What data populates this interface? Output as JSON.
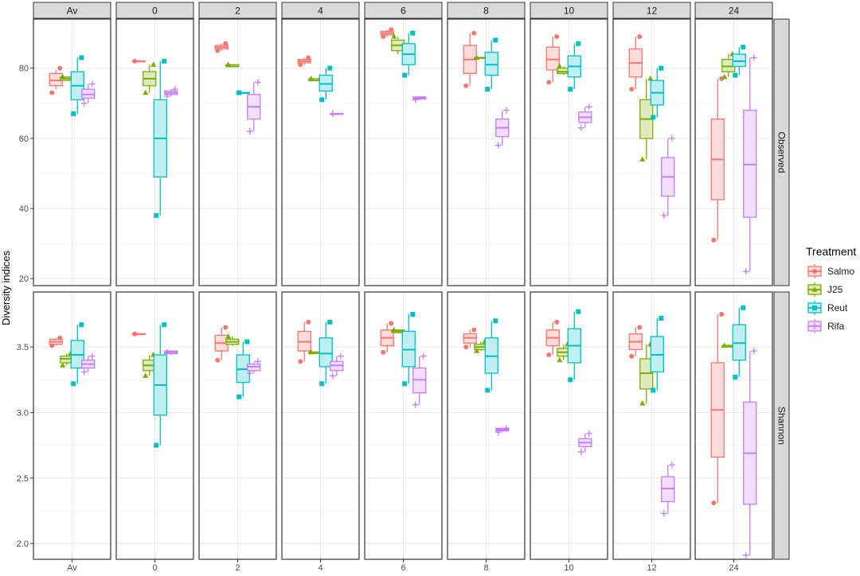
{
  "chart_data": {
    "type": "boxplot",
    "facet_columns": [
      "Av",
      "0",
      "2",
      "4",
      "6",
      "8",
      "10",
      "12",
      "24"
    ],
    "facet_rows": [
      "Observed",
      "Shannon"
    ],
    "ylabel": "Diversity indices",
    "legend": {
      "title": "Treatment",
      "position": "right",
      "entries": [
        "Salmo",
        "J25",
        "Reut",
        "Rifa"
      ]
    },
    "colors": {
      "Salmo": "#f8766d",
      "J25": "#7cae00",
      "Reut": "#00bfc4",
      "Rifa": "#c77cff"
    },
    "shapes": {
      "Salmo": "circle",
      "J25": "triangle",
      "Reut": "square",
      "Rifa": "plus"
    },
    "grid": true,
    "scales": {
      "Observed": {
        "ylim": [
          18,
          94
        ],
        "ticks": [
          20,
          40,
          60,
          80
        ],
        "tick_labels": [
          "20",
          "40",
          "60",
          "80"
        ]
      },
      "Shannon": {
        "ylim": [
          1.88,
          3.92
        ],
        "ticks": [
          2.0,
          2.5,
          3.0,
          3.5
        ],
        "tick_labels": [
          "2.0",
          "2.5",
          "3.0",
          "3.5"
        ]
      }
    },
    "panels": {
      "Observed": {
        "Av": {
          "Salmo": {
            "q1": 75,
            "median": 76.5,
            "q3": 78.5,
            "whisker_low": 74,
            "whisker_high": 79.5,
            "points": [
              73,
              80
            ]
          },
          "J25": {
            "q1": 76.5,
            "median": 77,
            "q3": 77.5,
            "whisker_low": 76.5,
            "whisker_high": 77.5,
            "points": [
              77.5
            ]
          },
          "Reut": {
            "q1": 71,
            "median": 75,
            "q3": 79,
            "whisker_low": 67,
            "whisker_high": 83,
            "points": [
              67,
              83
            ]
          },
          "Rifa": {
            "q1": 71.5,
            "median": 72.5,
            "q3": 74,
            "whisker_low": 70,
            "whisker_high": 75.5,
            "points": [
              70,
              75.5
            ]
          }
        },
        "0": {
          "Salmo": {
            "q1": 82,
            "median": 82,
            "q3": 82,
            "whisker_low": 82,
            "whisker_high": 82,
            "points": [
              82
            ]
          },
          "J25": {
            "q1": 75,
            "median": 77,
            "q3": 79,
            "whisker_low": 73,
            "whisker_high": 81,
            "points": [
              73,
              81
            ]
          },
          "Reut": {
            "q1": 49,
            "median": 60,
            "q3": 71,
            "whisker_low": 38,
            "whisker_high": 82,
            "points": [
              38,
              82
            ]
          },
          "Rifa": {
            "q1": 72.5,
            "median": 73,
            "q3": 73.5,
            "whisker_low": 72,
            "whisker_high": 74,
            "points": [
              72,
              74
            ]
          }
        },
        "2": {
          "Salmo": {
            "q1": 85.5,
            "median": 86,
            "q3": 86.5,
            "whisker_low": 85,
            "whisker_high": 87,
            "points": [
              85,
              87
            ]
          },
          "J25": {
            "q1": 80.5,
            "median": 80.5,
            "q3": 81,
            "whisker_low": 80.5,
            "whisker_high": 81,
            "points": [
              81
            ]
          },
          "Reut": {
            "q1": 73,
            "median": 73,
            "q3": 73,
            "whisker_low": 73,
            "whisker_high": 73,
            "points": [
              73
            ]
          },
          "Rifa": {
            "q1": 65.5,
            "median": 69,
            "q3": 72.5,
            "whisker_low": 62,
            "whisker_high": 76,
            "points": [
              62,
              76
            ]
          }
        },
        "4": {
          "Salmo": {
            "q1": 81.5,
            "median": 82,
            "q3": 82.5,
            "whisker_low": 81,
            "whisker_high": 83,
            "points": [
              81,
              83
            ]
          },
          "J25": {
            "q1": 76.5,
            "median": 76.5,
            "q3": 77,
            "whisker_low": 76.5,
            "whisker_high": 77,
            "points": [
              77
            ]
          },
          "Reut": {
            "q1": 73.5,
            "median": 75.5,
            "q3": 78,
            "whisker_low": 71,
            "whisker_high": 80,
            "points": [
              71,
              80
            ]
          },
          "Rifa": {
            "q1": 67,
            "median": 67,
            "q3": 67,
            "whisker_low": 67,
            "whisker_high": 67,
            "points": [
              67
            ]
          }
        },
        "6": {
          "Salmo": {
            "q1": 89.5,
            "median": 90,
            "q3": 90.5,
            "whisker_low": 89,
            "whisker_high": 91,
            "points": [
              89,
              91
            ]
          },
          "J25": {
            "q1": 85,
            "median": 86.5,
            "q3": 88,
            "whisker_low": 84,
            "whisker_high": 89,
            "points": [
              89
            ]
          },
          "Reut": {
            "q1": 81,
            "median": 84,
            "q3": 87,
            "whisker_low": 78,
            "whisker_high": 90,
            "points": [
              78,
              90
            ]
          },
          "Rifa": {
            "q1": 71.2,
            "median": 71.5,
            "q3": 71.8,
            "whisker_low": 71,
            "whisker_high": 72,
            "points": [
              71
            ]
          }
        },
        "8": {
          "Salmo": {
            "q1": 78.5,
            "median": 82.5,
            "q3": 86.5,
            "whisker_low": 75,
            "whisker_high": 90,
            "points": [
              75,
              90
            ]
          },
          "J25": {
            "q1": 83,
            "median": 83,
            "q3": 83,
            "whisker_low": 83,
            "whisker_high": 83,
            "points": [
              83
            ]
          },
          "Reut": {
            "q1": 78,
            "median": 81,
            "q3": 84.5,
            "whisker_low": 74,
            "whisker_high": 88,
            "points": [
              74,
              88
            ]
          },
          "Rifa": {
            "q1": 60.5,
            "median": 63,
            "q3": 65.5,
            "whisker_low": 58,
            "whisker_high": 68,
            "points": [
              58,
              68
            ]
          }
        },
        "10": {
          "Salmo": {
            "q1": 79.5,
            "median": 82.5,
            "q3": 86,
            "whisker_low": 76,
            "whisker_high": 89,
            "points": [
              76,
              89
            ]
          },
          "J25": {
            "q1": 78.5,
            "median": 79,
            "q3": 80,
            "whisker_low": 78,
            "whisker_high": 80.5,
            "points": [
              80.5
            ]
          },
          "Reut": {
            "q1": 77.5,
            "median": 80.5,
            "q3": 83.5,
            "whisker_low": 74,
            "whisker_high": 87,
            "points": [
              74,
              87
            ]
          },
          "Rifa": {
            "q1": 64.5,
            "median": 66,
            "q3": 67.5,
            "whisker_low": 63,
            "whisker_high": 69,
            "points": [
              63,
              69
            ]
          }
        },
        "12": {
          "Salmo": {
            "q1": 77.5,
            "median": 81.5,
            "q3": 85.5,
            "whisker_low": 74,
            "whisker_high": 89,
            "points": [
              74,
              89
            ]
          },
          "J25": {
            "q1": 60,
            "median": 65.5,
            "q3": 71,
            "whisker_low": 54,
            "whisker_high": 77,
            "points": [
              54,
              77
            ]
          },
          "Reut": {
            "q1": 69.5,
            "median": 73,
            "q3": 76.5,
            "whisker_low": 66,
            "whisker_high": 80,
            "points": [
              66,
              80
            ]
          },
          "Rifa": {
            "q1": 43.5,
            "median": 49,
            "q3": 54.5,
            "whisker_low": 38,
            "whisker_high": 60,
            "points": [
              38,
              60
            ]
          }
        },
        "24": {
          "Salmo": {
            "q1": 42.5,
            "median": 54,
            "q3": 65.5,
            "whisker_low": 31,
            "whisker_high": 77,
            "points": [
              31,
              77
            ]
          },
          "J25": {
            "q1": 79,
            "median": 80.5,
            "q3": 82.5,
            "whisker_low": 77.5,
            "whisker_high": 84,
            "points": [
              77.5,
              84
            ]
          },
          "Reut": {
            "q1": 80.5,
            "median": 82,
            "q3": 84,
            "whisker_low": 78,
            "whisker_high": 86,
            "points": [
              78,
              86
            ]
          },
          "Rifa": {
            "q1": 37.5,
            "median": 52.5,
            "q3": 68,
            "whisker_low": 22,
            "whisker_high": 83,
            "points": [
              22,
              83
            ]
          }
        }
      },
      "Shannon": {
        "Av": {
          "Salmo": {
            "q1": 3.52,
            "median": 3.54,
            "q3": 3.56,
            "whisker_low": 3.51,
            "whisker_high": 3.57,
            "points": [
              3.51,
              3.57
            ]
          },
          "J25": {
            "q1": 3.38,
            "median": 3.41,
            "q3": 3.43,
            "whisker_low": 3.36,
            "whisker_high": 3.45,
            "points": [
              3.36,
              3.45
            ]
          },
          "Reut": {
            "q1": 3.34,
            "median": 3.44,
            "q3": 3.55,
            "whisker_low": 3.22,
            "whisker_high": 3.67,
            "points": [
              3.22,
              3.67
            ]
          },
          "Rifa": {
            "q1": 3.34,
            "median": 3.37,
            "q3": 3.4,
            "whisker_low": 3.31,
            "whisker_high": 3.43,
            "points": [
              3.31,
              3.43
            ]
          }
        },
        "0": {
          "Salmo": {
            "q1": 3.6,
            "median": 3.6,
            "q3": 3.6,
            "whisker_low": 3.6,
            "whisker_high": 3.6,
            "points": [
              3.6
            ]
          },
          "J25": {
            "q1": 3.32,
            "median": 3.36,
            "q3": 3.4,
            "whisker_low": 3.28,
            "whisker_high": 3.44,
            "points": [
              3.28,
              3.44
            ]
          },
          "Reut": {
            "q1": 2.98,
            "median": 3.21,
            "q3": 3.44,
            "whisker_low": 2.75,
            "whisker_high": 3.67,
            "points": [
              2.75,
              3.67
            ]
          },
          "Rifa": {
            "q1": 3.45,
            "median": 3.46,
            "q3": 3.47,
            "whisker_low": 3.44,
            "whisker_high": 3.47,
            "points": [
              3.46
            ]
          }
        },
        "2": {
          "Salmo": {
            "q1": 3.47,
            "median": 3.53,
            "q3": 3.59,
            "whisker_low": 3.4,
            "whisker_high": 3.65,
            "points": [
              3.4,
              3.65
            ]
          },
          "J25": {
            "q1": 3.52,
            "median": 3.54,
            "q3": 3.56,
            "whisker_low": 3.51,
            "whisker_high": 3.58,
            "points": [
              3.58
            ]
          },
          "Reut": {
            "q1": 3.23,
            "median": 3.33,
            "q3": 3.44,
            "whisker_low": 3.12,
            "whisker_high": 3.54,
            "points": [
              3.12,
              3.54
            ]
          },
          "Rifa": {
            "q1": 3.32,
            "median": 3.35,
            "q3": 3.37,
            "whisker_low": 3.3,
            "whisker_high": 3.39,
            "points": [
              3.3,
              3.39
            ]
          }
        },
        "4": {
          "Salmo": {
            "q1": 3.47,
            "median": 3.54,
            "q3": 3.62,
            "whisker_low": 3.39,
            "whisker_high": 3.69,
            "points": [
              3.39,
              3.69
            ]
          },
          "J25": {
            "q1": 3.45,
            "median": 3.46,
            "q3": 3.46,
            "whisker_low": 3.45,
            "whisker_high": 3.46,
            "points": [
              3.46
            ]
          },
          "Reut": {
            "q1": 3.35,
            "median": 3.45,
            "q3": 3.57,
            "whisker_low": 3.22,
            "whisker_high": 3.69,
            "points": [
              3.22,
              3.69
            ]
          },
          "Rifa": {
            "q1": 3.32,
            "median": 3.36,
            "q3": 3.39,
            "whisker_low": 3.28,
            "whisker_high": 3.43,
            "points": [
              3.28,
              3.43
            ]
          }
        },
        "6": {
          "Salmo": {
            "q1": 3.51,
            "median": 3.57,
            "q3": 3.63,
            "whisker_low": 3.46,
            "whisker_high": 3.68,
            "points": [
              3.46,
              3.68
            ]
          },
          "J25": {
            "q1": 3.61,
            "median": 3.62,
            "q3": 3.63,
            "whisker_low": 3.61,
            "whisker_high": 3.63,
            "points": [
              3.63
            ]
          },
          "Reut": {
            "q1": 3.35,
            "median": 3.48,
            "q3": 3.62,
            "whisker_low": 3.22,
            "whisker_high": 3.75,
            "points": [
              3.22,
              3.75
            ]
          },
          "Rifa": {
            "q1": 3.15,
            "median": 3.25,
            "q3": 3.34,
            "whisker_low": 3.06,
            "whisker_high": 3.43,
            "points": [
              3.06,
              3.43
            ]
          }
        },
        "8": {
          "Salmo": {
            "q1": 3.53,
            "median": 3.57,
            "q3": 3.6,
            "whisker_low": 3.5,
            "whisker_high": 3.63,
            "points": [
              3.5,
              3.63
            ]
          },
          "J25": {
            "q1": 3.48,
            "median": 3.5,
            "q3": 3.52,
            "whisker_low": 3.47,
            "whisker_high": 3.54,
            "points": [
              3.47,
              3.54
            ]
          },
          "Reut": {
            "q1": 3.3,
            "median": 3.43,
            "q3": 3.57,
            "whisker_low": 3.17,
            "whisker_high": 3.7,
            "points": [
              3.17,
              3.7
            ]
          },
          "Rifa": {
            "q1": 2.86,
            "median": 2.87,
            "q3": 2.88,
            "whisker_low": 2.85,
            "whisker_high": 2.88,
            "points": [
              2.85,
              2.88
            ]
          }
        },
        "10": {
          "Salmo": {
            "q1": 3.51,
            "median": 3.57,
            "q3": 3.63,
            "whisker_low": 3.44,
            "whisker_high": 3.69,
            "points": [
              3.44,
              3.69
            ]
          },
          "J25": {
            "q1": 3.43,
            "median": 3.46,
            "q3": 3.49,
            "whisker_low": 3.4,
            "whisker_high": 3.52,
            "points": [
              3.4,
              3.52
            ]
          },
          "Reut": {
            "q1": 3.38,
            "median": 3.51,
            "q3": 3.64,
            "whisker_low": 3.25,
            "whisker_high": 3.77,
            "points": [
              3.25,
              3.77
            ]
          },
          "Rifa": {
            "q1": 2.74,
            "median": 2.77,
            "q3": 2.8,
            "whisker_low": 2.7,
            "whisker_high": 2.84,
            "points": [
              2.7,
              2.84
            ]
          }
        },
        "12": {
          "Salmo": {
            "q1": 3.48,
            "median": 3.54,
            "q3": 3.6,
            "whisker_low": 3.43,
            "whisker_high": 3.65,
            "points": [
              3.43,
              3.65
            ]
          },
          "J25": {
            "q1": 3.18,
            "median": 3.3,
            "q3": 3.41,
            "whisker_low": 3.07,
            "whisker_high": 3.52,
            "points": [
              3.07,
              3.52
            ]
          },
          "Reut": {
            "q1": 3.31,
            "median": 3.44,
            "q3": 3.58,
            "whisker_low": 3.17,
            "whisker_high": 3.72,
            "points": [
              3.17,
              3.72
            ]
          },
          "Rifa": {
            "q1": 2.32,
            "median": 2.42,
            "q3": 2.51,
            "whisker_low": 2.23,
            "whisker_high": 2.6,
            "points": [
              2.23,
              2.6
            ]
          }
        },
        "24": {
          "Salmo": {
            "q1": 2.66,
            "median": 3.02,
            "q3": 3.38,
            "whisker_low": 2.31,
            "whisker_high": 3.75,
            "points": [
              2.31,
              3.75
            ]
          },
          "J25": {
            "q1": 3.5,
            "median": 3.51,
            "q3": 3.51,
            "whisker_low": 3.5,
            "whisker_high": 3.52,
            "points": [
              3.51
            ]
          },
          "Reut": {
            "q1": 3.4,
            "median": 3.53,
            "q3": 3.67,
            "whisker_low": 3.27,
            "whisker_high": 3.8,
            "points": [
              3.27,
              3.8
            ]
          },
          "Rifa": {
            "q1": 2.3,
            "median": 2.69,
            "q3": 3.08,
            "whisker_low": 1.91,
            "whisker_high": 3.47,
            "points": [
              1.91,
              3.47
            ]
          }
        }
      }
    }
  }
}
